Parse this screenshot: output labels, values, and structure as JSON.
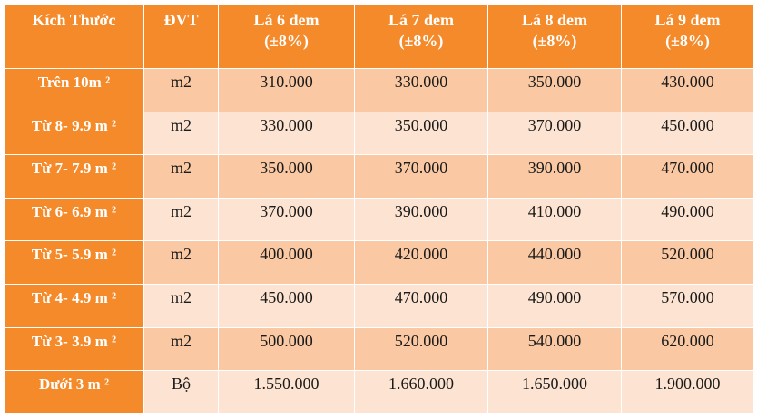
{
  "table": {
    "headers": {
      "size": "Kích Thước",
      "unit": "ĐVT",
      "col1": {
        "line1": "Lá 6 dem",
        "line2": "(±8%)"
      },
      "col2": {
        "line1": "Lá 7 dem",
        "line2": "(±8%)"
      },
      "col3": {
        "line1": "Lá 8 dem",
        "line2": "(±8%)"
      },
      "col4": {
        "line1": "Lá 9 dem",
        "line2": "(±8%)"
      }
    },
    "rows": [
      {
        "size": "Trên 10m ²",
        "unit": "m2",
        "values": [
          "310.000",
          "330.000",
          "350.000",
          "430.000"
        ]
      },
      {
        "size": "Từ 8- 9.9 m ²",
        "unit": "m2",
        "values": [
          "330.000",
          "350.000",
          "370.000",
          "450.000"
        ]
      },
      {
        "size": "Từ 7- 7.9 m ²",
        "unit": "m2",
        "values": [
          "350.000",
          "370.000",
          "390.000",
          "470.000"
        ]
      },
      {
        "size": "Từ 6- 6.9 m ²",
        "unit": "m2",
        "values": [
          "370.000",
          "390.000",
          "410.000",
          "490.000"
        ]
      },
      {
        "size": "Từ 5- 5.9 m ²",
        "unit": "m2",
        "values": [
          "400.000",
          "420.000",
          "440.000",
          "520.000"
        ]
      },
      {
        "size": "Từ 4- 4.9 m ²",
        "unit": "m2",
        "values": [
          "450.000",
          "470.000",
          "490.000",
          "570.000"
        ]
      },
      {
        "size": "Từ 3- 3.9 m ²",
        "unit": "m2",
        "values": [
          "500.000",
          "520.000",
          "540.000",
          "620.000"
        ]
      },
      {
        "size": "Dưới 3 m ²",
        "unit": "Bộ",
        "values": [
          "1.550.000",
          "1.660.000",
          "1.650.000",
          "1.900.000"
        ]
      }
    ]
  },
  "colors": {
    "header_orange": "#f58a2a",
    "band_dark": "#fac9a3",
    "band_light": "#fde4d2",
    "header_text": "#ffffff",
    "body_text": "#1a1a1a"
  }
}
